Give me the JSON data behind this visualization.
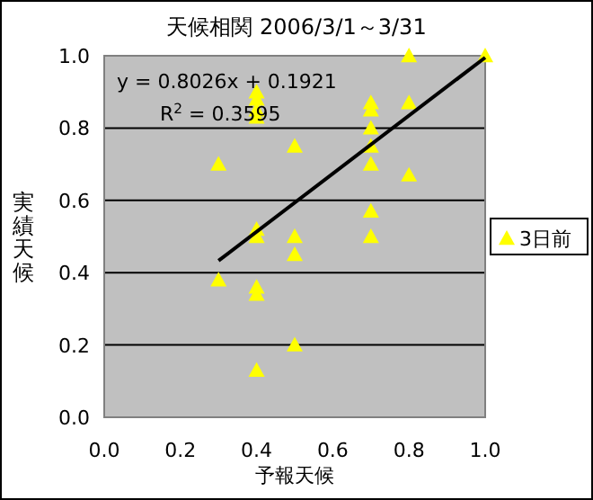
{
  "chart_data": {
    "type": "scatter",
    "title": "天候相関  2006/3/1～3/31",
    "xlabel": "予報天候",
    "ylabel": "実績天候",
    "xlim": [
      0,
      1
    ],
    "ylim": [
      0,
      1
    ],
    "xticks": [
      {
        "value": 0,
        "label": "0.0"
      },
      {
        "value": 0.2,
        "label": "0.2"
      },
      {
        "value": 0.4,
        "label": "0.4"
      },
      {
        "value": 0.6,
        "label": "0.6"
      },
      {
        "value": 0.8,
        "label": "0.8"
      },
      {
        "value": 1,
        "label": "1.0"
      }
    ],
    "yticks": [
      {
        "value": 0,
        "label": "0.0"
      },
      {
        "value": 0.2,
        "label": "0.2"
      },
      {
        "value": 0.4,
        "label": "0.4"
      },
      {
        "value": 0.6,
        "label": "0.6"
      },
      {
        "value": 0.8,
        "label": "0.8"
      },
      {
        "value": 1,
        "label": "1.0"
      }
    ],
    "grid": "y",
    "legend": "right",
    "marker": "triangle",
    "annotations": [
      "y = 0.8026x + 0.1921",
      "R$^{2}$ = 0.3595"
    ],
    "series": [
      {
        "name": "3日前",
        "color": "#ffff00",
        "x": [
          0.3,
          0.3,
          0.4,
          0.4,
          0.4,
          0.4,
          0.4,
          0.4,
          0.4,
          0.4,
          0.4,
          0.5,
          0.5,
          0.5,
          0.5,
          0.7,
          0.7,
          0.7,
          0.7,
          0.7,
          0.7,
          0.7,
          0.8,
          0.8,
          0.8,
          1.0
        ],
        "values": [
          0.7,
          0.38,
          0.9,
          0.88,
          0.85,
          0.83,
          0.52,
          0.5,
          0.36,
          0.34,
          0.13,
          0.75,
          0.5,
          0.45,
          0.2,
          0.87,
          0.85,
          0.8,
          0.75,
          0.7,
          0.57,
          0.5,
          1.0,
          0.87,
          0.67,
          1.0
        ]
      },
      {
        "type": "line",
        "marker": "none",
        "color": "#000000",
        "x": [
          0.3,
          1.0
        ],
        "values": [
          0.433,
          0.995
        ]
      }
    ]
  }
}
